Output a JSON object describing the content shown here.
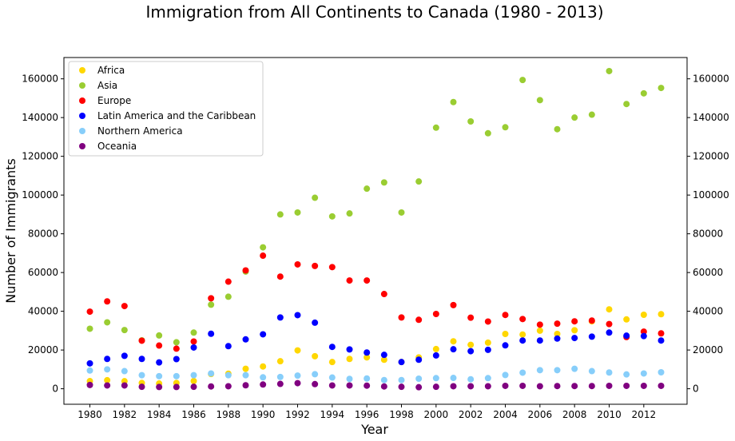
{
  "chart_data": {
    "type": "scatter",
    "title": "Immigration from All Continents to Canada (1980 - 2013)",
    "xlabel": "Year",
    "ylabel": "Number of Immigrants",
    "xlim": [
      1978.5,
      2014.5
    ],
    "ylim": [
      -8000,
      171000
    ],
    "x_ticks": [
      1980,
      1982,
      1984,
      1986,
      1988,
      1990,
      1992,
      1994,
      1996,
      1998,
      2000,
      2002,
      2004,
      2006,
      2008,
      2010,
      2012
    ],
    "y_ticks": [
      0,
      20000,
      40000,
      60000,
      80000,
      100000,
      120000,
      140000,
      160000
    ],
    "grid": false,
    "legend_position": "upper-left",
    "x": [
      1980,
      1981,
      1982,
      1983,
      1984,
      1985,
      1986,
      1987,
      1988,
      1989,
      1990,
      1991,
      1992,
      1993,
      1994,
      1995,
      1996,
      1997,
      1998,
      1999,
      2000,
      2001,
      2002,
      2003,
      2004,
      2005,
      2006,
      2007,
      2008,
      2009,
      2010,
      2011,
      2012,
      2013
    ],
    "series": [
      {
        "name": "Africa",
        "color": "#FFD700",
        "values": [
          3950,
          4400,
          3900,
          3000,
          2700,
          3000,
          4000,
          7600,
          7800,
          10300,
          11500,
          14200,
          19800,
          16800,
          13800,
          15400,
          16200,
          15000,
          13800,
          16200,
          20500,
          24500,
          22700,
          23800,
          28300,
          28000,
          30000,
          28300,
          30200,
          34800,
          41000,
          35800,
          38200,
          38500
        ]
      },
      {
        "name": "Asia",
        "color": "#9ACD32",
        "values": [
          31000,
          34300,
          30300,
          25000,
          27500,
          24000,
          29000,
          43400,
          47500,
          60500,
          73000,
          90000,
          91000,
          98600,
          89000,
          90500,
          103300,
          106500,
          91000,
          107000,
          134800,
          148000,
          138000,
          131900,
          135000,
          159400,
          149000,
          134000,
          140000,
          141500,
          164000,
          147000,
          152500,
          155300
        ]
      },
      {
        "name": "Europe",
        "color": "#FF0000",
        "values": [
          39800,
          45100,
          42700,
          24800,
          22300,
          20700,
          24400,
          46700,
          55300,
          61100,
          68700,
          57900,
          64200,
          63400,
          62800,
          55900,
          55900,
          48900,
          36800,
          35600,
          38600,
          43200,
          36700,
          34700,
          38100,
          36000,
          33100,
          33600,
          34800,
          35200,
          33400,
          26700,
          29500,
          28600
        ]
      },
      {
        "name": "Latin America and the Caribbean",
        "color": "#0000FF",
        "values": [
          13100,
          15400,
          17000,
          15400,
          13600,
          15300,
          21300,
          28400,
          22000,
          25500,
          28100,
          36800,
          38000,
          34100,
          21600,
          20300,
          18700,
          17500,
          13800,
          15000,
          17200,
          20400,
          19400,
          20100,
          22400,
          24900,
          24900,
          25900,
          26200,
          26900,
          29000,
          27400,
          27200,
          24900
        ]
      },
      {
        "name": "Northern America",
        "color": "#87CEFA",
        "values": [
          9400,
          10000,
          9100,
          7000,
          6500,
          6500,
          7000,
          7900,
          7000,
          7000,
          5900,
          6100,
          6800,
          7500,
          5800,
          5100,
          5300,
          4500,
          4500,
          5200,
          5500,
          5600,
          4900,
          5500,
          7100,
          8300,
          9600,
          9600,
          10300,
          9100,
          8400,
          7400,
          7900,
          8500
        ]
      },
      {
        "name": "Oceania",
        "color": "#800080",
        "values": [
          1950,
          1700,
          1700,
          1000,
          900,
          900,
          1000,
          1200,
          1300,
          1800,
          2200,
          2500,
          2900,
          2400,
          1700,
          1700,
          1600,
          1200,
          1000,
          800,
          1000,
          1300,
          1300,
          1300,
          1500,
          1500,
          1300,
          1400,
          1400,
          1400,
          1500,
          1500,
          1500,
          1500
        ]
      }
    ]
  }
}
